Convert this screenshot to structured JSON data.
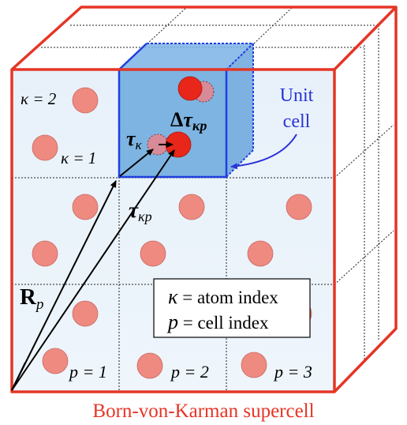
{
  "labels": {
    "kappa2": "κ = 2",
    "kappa1": "κ = 1",
    "unit_cell_line1": "Unit",
    "unit_cell_line2": "cell",
    "delta_tau_main": "Δ",
    "delta_tau_sym": "τ",
    "delta_tau_sub": "κp",
    "tau_k_sym": "τ",
    "tau_k_sub": "κ",
    "tau_kp_sym": "τ",
    "tau_kp_sub": "κp",
    "Rp_sym": "R",
    "Rp_sub": "p",
    "p1": "p = 1",
    "p2": "p = 2",
    "p3": "p = 3",
    "caption": "Born-von-Karman supercell"
  },
  "legend": {
    "line1_sym": "κ",
    "line1_text": " = atom index",
    "line2_sym": "p",
    "line2_text": " = cell index"
  },
  "colors": {
    "supercell_border": "#e53526",
    "unit_cell_border": "#1f3fe0",
    "unit_cell_fill": "#5a9fd8",
    "atom_fill": "#ee8a80",
    "displaced_atom": "#e8261a",
    "caption": "#e53526",
    "annotation_blue": "#2a33d8"
  }
}
